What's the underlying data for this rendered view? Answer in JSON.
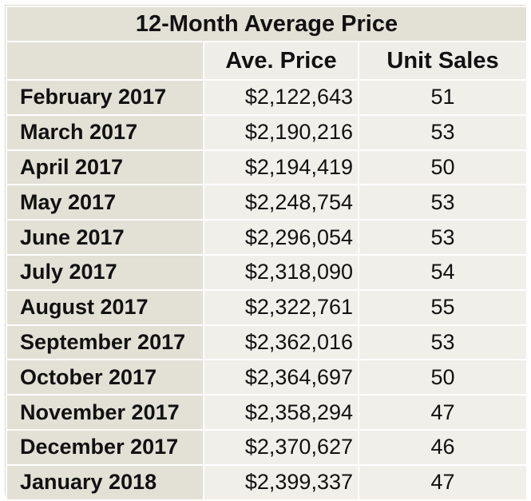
{
  "chart_data": {
    "type": "table",
    "title": "12-Month Average Price",
    "columns": [
      "",
      "Ave. Price",
      "Unit Sales"
    ],
    "rows": [
      {
        "month": "February 2017",
        "price": "$2,122,643",
        "units": "51"
      },
      {
        "month": "March 2017",
        "price": "$2,190,216",
        "units": "53"
      },
      {
        "month": "April 2017",
        "price": "$2,194,419",
        "units": "50"
      },
      {
        "month": "May 2017",
        "price": "$2,248,754",
        "units": "53"
      },
      {
        "month": "June 2017",
        "price": "$2,296,054",
        "units": "53"
      },
      {
        "month": "July 2017",
        "price": "$2,318,090",
        "units": "54"
      },
      {
        "month": "August 2017",
        "price": "$2,322,761",
        "units": "55"
      },
      {
        "month": "September 2017",
        "price": "$2,362,016",
        "units": "53"
      },
      {
        "month": "October 2017",
        "price": "$2,364,697",
        "units": "50"
      },
      {
        "month": "November 2017",
        "price": "$2,358,294",
        "units": "47"
      },
      {
        "month": "December 2017",
        "price": "$2,370,627",
        "units": "46"
      },
      {
        "month": "January 2018",
        "price": "$2,399,337",
        "units": "47"
      }
    ]
  },
  "colors": {
    "label_fill": "#e3e0d6",
    "cell_fill": "#f1efe9",
    "grid": "#ffffff",
    "text": "#111111"
  }
}
